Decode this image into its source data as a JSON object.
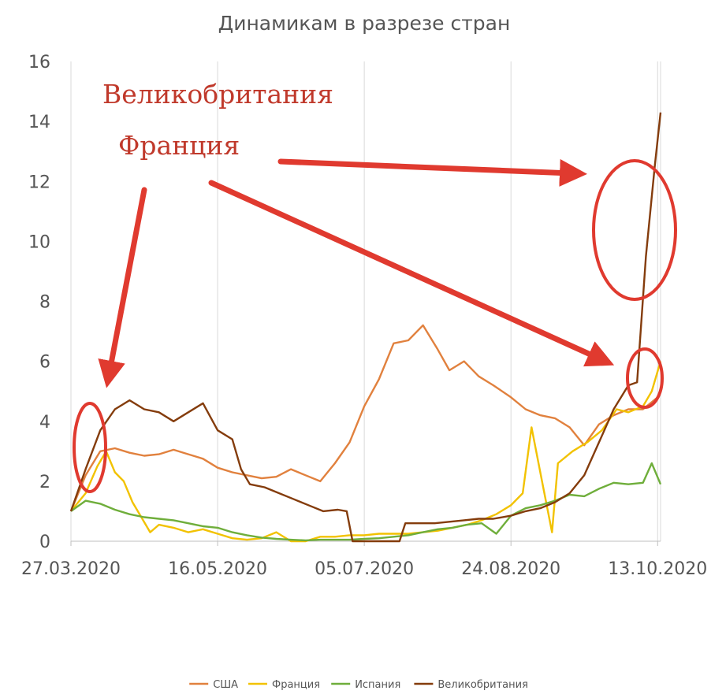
{
  "chart_data": {
    "type": "line",
    "title": "Динамикам в разрезе стран",
    "xlabel": "",
    "ylabel": "",
    "x_ticks": [
      "27.03.2020",
      "16.05.2020",
      "05.07.2020",
      "24.08.2020",
      "13.10.2020"
    ],
    "x_range": [
      "27.03.2020",
      "14.10.2020"
    ],
    "ylim": [
      0,
      16
    ],
    "y_ticks": [
      0,
      2,
      4,
      6,
      8,
      10,
      12,
      14,
      16
    ],
    "grid": "vertical",
    "legend_position": "bottom",
    "series": [
      {
        "name": "США",
        "color": "#E1813E",
        "points": [
          [
            "27.03.2020",
            1.0
          ],
          [
            "01.04.2020",
            2.2
          ],
          [
            "06.04.2020",
            3.0
          ],
          [
            "11.04.2020",
            3.1
          ],
          [
            "16.04.2020",
            2.95
          ],
          [
            "21.04.2020",
            2.85
          ],
          [
            "26.04.2020",
            2.9
          ],
          [
            "01.05.2020",
            3.05
          ],
          [
            "06.05.2020",
            2.9
          ],
          [
            "11.05.2020",
            2.75
          ],
          [
            "16.05.2020",
            2.45
          ],
          [
            "21.05.2020",
            2.3
          ],
          [
            "26.05.2020",
            2.2
          ],
          [
            "31.05.2020",
            2.1
          ],
          [
            "05.06.2020",
            2.15
          ],
          [
            "10.06.2020",
            2.4
          ],
          [
            "15.06.2020",
            2.2
          ],
          [
            "20.06.2020",
            2.0
          ],
          [
            "25.06.2020",
            2.6
          ],
          [
            "30.06.2020",
            3.3
          ],
          [
            "05.07.2020",
            4.5
          ],
          [
            "10.07.2020",
            5.4
          ],
          [
            "15.07.2020",
            6.6
          ],
          [
            "20.07.2020",
            6.7
          ],
          [
            "25.07.2020",
            7.2
          ],
          [
            "30.07.2020",
            6.4
          ],
          [
            "03.08.2020",
            5.7
          ],
          [
            "08.08.2020",
            6.0
          ],
          [
            "13.08.2020",
            5.5
          ],
          [
            "18.08.2020",
            5.2
          ],
          [
            "24.08.2020",
            4.8
          ],
          [
            "29.08.2020",
            4.4
          ],
          [
            "03.09.2020",
            4.2
          ],
          [
            "08.09.2020",
            4.1
          ],
          [
            "13.09.2020",
            3.8
          ],
          [
            "18.09.2020",
            3.2
          ],
          [
            "23.09.2020",
            3.9
          ],
          [
            "28.09.2020",
            4.2
          ],
          [
            "03.10.2020",
            4.4
          ],
          [
            "08.10.2020",
            4.4
          ],
          [
            "13.10.2020",
            4.8
          ]
        ]
      },
      {
        "name": "Франция",
        "color": "#F2C200",
        "points": [
          [
            "27.03.2020",
            1.0
          ],
          [
            "01.04.2020",
            1.6
          ],
          [
            "05.04.2020",
            2.5
          ],
          [
            "08.04.2020",
            3.0
          ],
          [
            "11.04.2020",
            2.3
          ],
          [
            "14.04.2020",
            2.0
          ],
          [
            "17.04.2020",
            1.3
          ],
          [
            "20.04.2020",
            0.8
          ],
          [
            "23.04.2020",
            0.3
          ],
          [
            "26.04.2020",
            0.55
          ],
          [
            "01.05.2020",
            0.45
          ],
          [
            "06.05.2020",
            0.3
          ],
          [
            "11.05.2020",
            0.4
          ],
          [
            "16.05.2020",
            0.25
          ],
          [
            "21.05.2020",
            0.1
          ],
          [
            "26.05.2020",
            0.05
          ],
          [
            "31.05.2020",
            0.1
          ],
          [
            "05.06.2020",
            0.3
          ],
          [
            "10.06.2020",
            0.0
          ],
          [
            "15.06.2020",
            0.0
          ],
          [
            "20.06.2020",
            0.15
          ],
          [
            "25.06.2020",
            0.15
          ],
          [
            "30.06.2020",
            0.2
          ],
          [
            "05.07.2020",
            0.2
          ],
          [
            "10.07.2020",
            0.25
          ],
          [
            "15.07.2020",
            0.25
          ],
          [
            "20.07.2020",
            0.25
          ],
          [
            "25.07.2020",
            0.3
          ],
          [
            "30.07.2020",
            0.35
          ],
          [
            "04.08.2020",
            0.45
          ],
          [
            "09.08.2020",
            0.55
          ],
          [
            "14.08.2020",
            0.7
          ],
          [
            "19.08.2020",
            0.9
          ],
          [
            "24.08.2020",
            1.2
          ],
          [
            "28.08.2020",
            1.6
          ],
          [
            "31.08.2020",
            3.8
          ],
          [
            "04.09.2020",
            1.8
          ],
          [
            "07.09.2020",
            0.3
          ],
          [
            "09.09.2020",
            2.6
          ],
          [
            "14.09.2020",
            3.0
          ],
          [
            "19.09.2020",
            3.3
          ],
          [
            "24.09.2020",
            3.7
          ],
          [
            "29.09.2020",
            4.4
          ],
          [
            "03.10.2020",
            4.3
          ],
          [
            "08.10.2020",
            4.5
          ],
          [
            "11.10.2020",
            5.0
          ],
          [
            "14.10.2020",
            6.0
          ]
        ]
      },
      {
        "name": "Испания",
        "color": "#6FAE3B",
        "points": [
          [
            "27.03.2020",
            1.0
          ],
          [
            "01.04.2020",
            1.35
          ],
          [
            "06.04.2020",
            1.25
          ],
          [
            "11.04.2020",
            1.05
          ],
          [
            "16.04.2020",
            0.9
          ],
          [
            "21.04.2020",
            0.8
          ],
          [
            "26.04.2020",
            0.75
          ],
          [
            "01.05.2020",
            0.7
          ],
          [
            "06.05.2020",
            0.6
          ],
          [
            "11.05.2020",
            0.5
          ],
          [
            "16.05.2020",
            0.45
          ],
          [
            "21.05.2020",
            0.3
          ],
          [
            "26.05.2020",
            0.2
          ],
          [
            "31.05.2020",
            0.12
          ],
          [
            "05.06.2020",
            0.08
          ],
          [
            "10.06.2020",
            0.05
          ],
          [
            "15.06.2020",
            0.03
          ],
          [
            "20.06.2020",
            0.05
          ],
          [
            "25.06.2020",
            0.05
          ],
          [
            "30.06.2020",
            0.05
          ],
          [
            "05.07.2020",
            0.08
          ],
          [
            "10.07.2020",
            0.1
          ],
          [
            "15.07.2020",
            0.15
          ],
          [
            "20.07.2020",
            0.2
          ],
          [
            "25.07.2020",
            0.3
          ],
          [
            "30.07.2020",
            0.4
          ],
          [
            "04.08.2020",
            0.45
          ],
          [
            "09.08.2020",
            0.55
          ],
          [
            "14.08.2020",
            0.6
          ],
          [
            "19.08.2020",
            0.25
          ],
          [
            "24.08.2020",
            0.85
          ],
          [
            "29.08.2020",
            1.1
          ],
          [
            "03.09.2020",
            1.2
          ],
          [
            "08.09.2020",
            1.35
          ],
          [
            "13.09.2020",
            1.55
          ],
          [
            "18.09.2020",
            1.5
          ],
          [
            "23.09.2020",
            1.75
          ],
          [
            "28.09.2020",
            1.95
          ],
          [
            "03.10.2020",
            1.9
          ],
          [
            "08.10.2020",
            1.95
          ],
          [
            "11.10.2020",
            2.6
          ],
          [
            "14.10.2020",
            1.9
          ]
        ]
      },
      {
        "name": "Великобритания",
        "color": "#843C0C",
        "points": [
          [
            "27.03.2020",
            1.0
          ],
          [
            "01.04.2020",
            2.4
          ],
          [
            "06.04.2020",
            3.7
          ],
          [
            "11.04.2020",
            4.4
          ],
          [
            "16.04.2020",
            4.7
          ],
          [
            "21.04.2020",
            4.4
          ],
          [
            "26.04.2020",
            4.3
          ],
          [
            "01.05.2020",
            4.0
          ],
          [
            "06.05.2020",
            4.3
          ],
          [
            "11.05.2020",
            4.6
          ],
          [
            "16.05.2020",
            3.7
          ],
          [
            "21.05.2020",
            3.4
          ],
          [
            "24.05.2020",
            2.4
          ],
          [
            "27.05.2020",
            1.9
          ],
          [
            "01.06.2020",
            1.8
          ],
          [
            "06.06.2020",
            1.6
          ],
          [
            "11.06.2020",
            1.4
          ],
          [
            "16.06.2020",
            1.2
          ],
          [
            "21.06.2020",
            1.0
          ],
          [
            "26.06.2020",
            1.05
          ],
          [
            "29.06.2020",
            1.0
          ],
          [
            "01.07.2020",
            0.0
          ],
          [
            "17.07.2020",
            0.0
          ],
          [
            "19.07.2020",
            0.6
          ],
          [
            "24.07.2020",
            0.6
          ],
          [
            "29.07.2020",
            0.6
          ],
          [
            "03.08.2020",
            0.65
          ],
          [
            "08.08.2020",
            0.7
          ],
          [
            "13.08.2020",
            0.75
          ],
          [
            "18.08.2020",
            0.75
          ],
          [
            "24.08.2020",
            0.85
          ],
          [
            "29.08.2020",
            1.0
          ],
          [
            "03.09.2020",
            1.1
          ],
          [
            "08.09.2020",
            1.3
          ],
          [
            "13.09.2020",
            1.6
          ],
          [
            "18.09.2020",
            2.2
          ],
          [
            "23.09.2020",
            3.3
          ],
          [
            "28.09.2020",
            4.4
          ],
          [
            "03.10.2020",
            5.2
          ],
          [
            "06.10.2020",
            5.3
          ],
          [
            "09.10.2020",
            9.5
          ],
          [
            "12.10.2020",
            12.5
          ],
          [
            "14.10.2020",
            14.3
          ]
        ]
      }
    ],
    "annotations": [
      "Великобритания",
      "Франция"
    ]
  }
}
